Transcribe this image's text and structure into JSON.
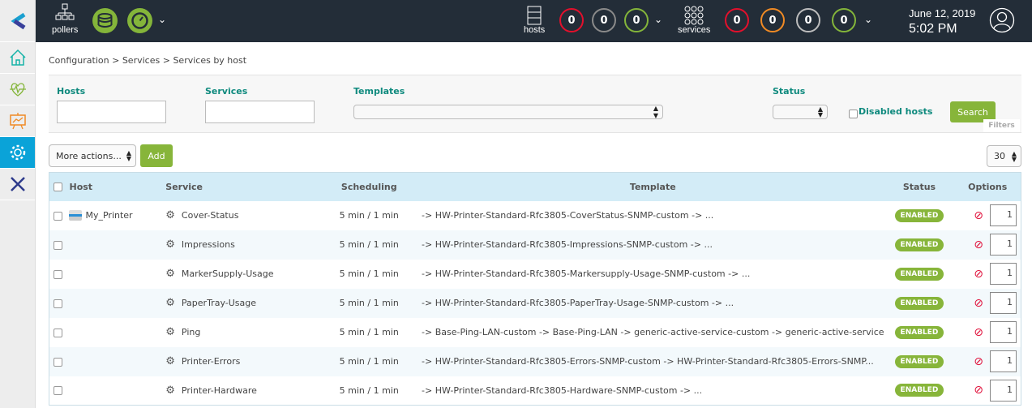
{
  "topbar": {
    "pollers_label": "pollers",
    "hosts_label": "hosts",
    "services_label": "services",
    "host_counts": [
      {
        "value": "0",
        "color": "#e3102c"
      },
      {
        "value": "0",
        "color": "#8a8a8a"
      },
      {
        "value": "0",
        "color": "#84b53a"
      }
    ],
    "service_counts": [
      {
        "value": "0",
        "color": "#e3102c"
      },
      {
        "value": "0",
        "color": "#f08a24"
      },
      {
        "value": "0",
        "color": "#bdbdbd"
      },
      {
        "value": "0",
        "color": "#84b53a"
      }
    ],
    "date": "June 12, 2019",
    "time": "5:02 PM"
  },
  "sidebar": [
    "home-icon",
    "monitoring-icon",
    "reporting-icon",
    "configuration-icon",
    "administration-icon"
  ],
  "breadcrumb": [
    "Configuration",
    "Services",
    "Services by host"
  ],
  "filters": {
    "hosts_label": "Hosts",
    "hosts_value": "",
    "services_label": "Services",
    "services_value": "",
    "templates_label": "Templates",
    "templates_value": "",
    "status_label": "Status",
    "status_value": "",
    "disabled_hosts_label": "Disabled hosts",
    "search_label": "Search",
    "filters_tab": "Filters"
  },
  "actions": {
    "more_actions": "More actions...",
    "add": "Add",
    "page_size": "30"
  },
  "table": {
    "headers": {
      "host": "Host",
      "service": "Service",
      "scheduling": "Scheduling",
      "template": "Template",
      "status": "Status",
      "options": "Options"
    },
    "rows": [
      {
        "host": "My_Printer",
        "service": "Cover-Status",
        "scheduling": "5 min / 1 min",
        "template": "-> HW-Printer-Standard-Rfc3805-CoverStatus-SNMP-custom -> ...",
        "status": "ENABLED",
        "dup": "1"
      },
      {
        "host": "",
        "service": "Impressions",
        "scheduling": "5 min / 1 min",
        "template": "-> HW-Printer-Standard-Rfc3805-Impressions-SNMP-custom -> ...",
        "status": "ENABLED",
        "dup": "1"
      },
      {
        "host": "",
        "service": "MarkerSupply-Usage",
        "scheduling": "5 min / 1 min",
        "template": "-> HW-Printer-Standard-Rfc3805-Markersupply-Usage-SNMP-custom -> ...",
        "status": "ENABLED",
        "dup": "1"
      },
      {
        "host": "",
        "service": "PaperTray-Usage",
        "scheduling": "5 min / 1 min",
        "template": "-> HW-Printer-Standard-Rfc3805-PaperTray-Usage-SNMP-custom -> ...",
        "status": "ENABLED",
        "dup": "1"
      },
      {
        "host": "",
        "service": "Ping",
        "scheduling": "5 min / 1 min",
        "template": "-> Base-Ping-LAN-custom -> Base-Ping-LAN -> generic-active-service-custom -> generic-active-service",
        "status": "ENABLED",
        "dup": "1"
      },
      {
        "host": "",
        "service": "Printer-Errors",
        "scheduling": "5 min / 1 min",
        "template": "-> HW-Printer-Standard-Rfc3805-Errors-SNMP-custom -> HW-Printer-Standard-Rfc3805-Errors-SNMP...",
        "status": "ENABLED",
        "dup": "1"
      },
      {
        "host": "",
        "service": "Printer-Hardware",
        "scheduling": "5 min / 1 min",
        "template": "-> HW-Printer-Standard-Rfc3805-Hardware-SNMP-custom -> ...",
        "status": "ENABLED",
        "dup": "1"
      }
    ]
  }
}
